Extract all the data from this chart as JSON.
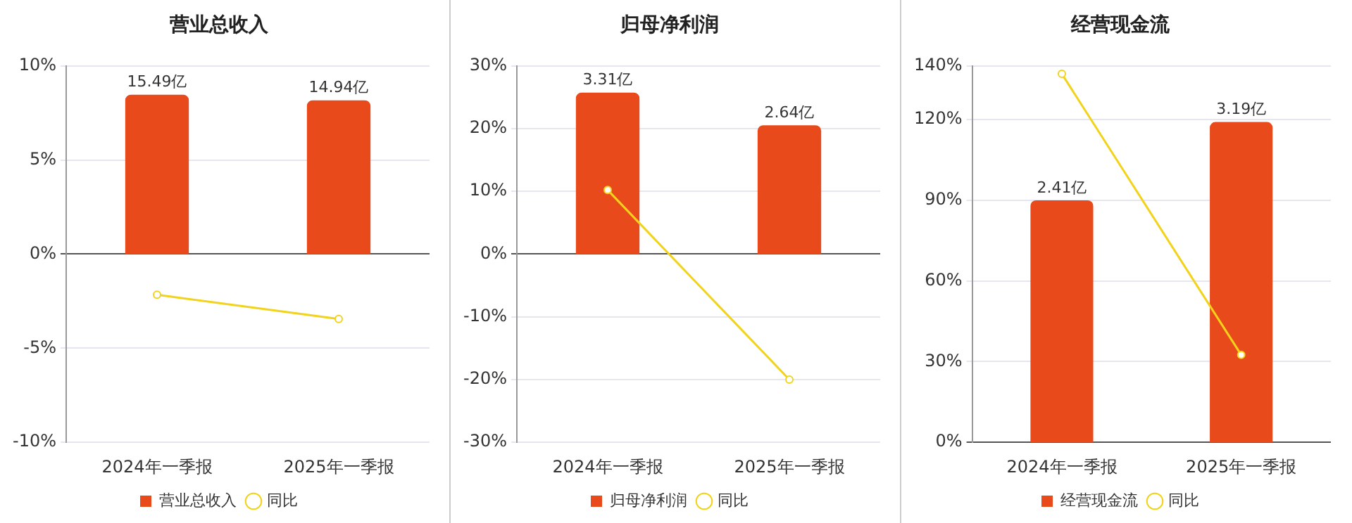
{
  "chart_data": [
    {
      "type": "bar",
      "title": "营业总收入",
      "categories": [
        "2024年一季报",
        "2025年一季报"
      ],
      "series": [
        {
          "name": "营业总收入",
          "axis": "y2",
          "color": "#e84a1c",
          "values": [
            15.49,
            14.94
          ],
          "value_labels": [
            "15.49亿",
            "14.94亿"
          ]
        },
        {
          "name": "同比",
          "type": "line",
          "color": "#f2d31b",
          "values": [
            -2.16,
            -3.45
          ]
        }
      ],
      "ylim": [
        -10,
        10
      ],
      "yticks": [
        {
          "value": -10,
          "label": "-10%"
        },
        {
          "value": -5,
          "label": "-5%"
        },
        {
          "value": 0,
          "label": "0%"
        },
        {
          "value": 5,
          "label": "5%"
        },
        {
          "value": 10,
          "label": "10%"
        }
      ],
      "y2lim": [
        -18.3,
        18.3
      ],
      "grid": "y",
      "legend": "bottom",
      "marker": "circle"
    },
    {
      "type": "bar",
      "title": "归母净利润",
      "categories": [
        "2024年一季报",
        "2025年一季报"
      ],
      "series": [
        {
          "name": "归母净利润",
          "axis": "y2",
          "color": "#e84a1c",
          "values": [
            3.31,
            2.64
          ],
          "value_labels": [
            "3.31亿",
            "2.64亿"
          ]
        },
        {
          "name": "同比",
          "type": "line",
          "color": "#f2d31b",
          "values": [
            10.2,
            -20
          ]
        }
      ],
      "ylim": [
        -30,
        30
      ],
      "yticks": [
        {
          "value": -30,
          "label": "-30%"
        },
        {
          "value": -20,
          "label": "-20%"
        },
        {
          "value": -10,
          "label": "-10%"
        },
        {
          "value": 0,
          "label": "0%"
        },
        {
          "value": 10,
          "label": "10%"
        },
        {
          "value": 20,
          "label": "20%"
        },
        {
          "value": 30,
          "label": "30%"
        }
      ],
      "y2lim": [
        -3.86,
        3.86
      ],
      "grid": "y",
      "legend": "bottom",
      "marker": "circle"
    },
    {
      "type": "bar",
      "title": "经营现金流",
      "categories": [
        "2024年一季报",
        "2025年一季报"
      ],
      "series": [
        {
          "name": "经营现金流",
          "axis": "y2",
          "color": "#e84a1c",
          "values": [
            2.41,
            3.19
          ],
          "value_labels": [
            "2.41亿",
            "3.19亿"
          ]
        },
        {
          "name": "同比",
          "type": "line",
          "color": "#f2d31b",
          "values": [
            137,
            32.5
          ]
        }
      ],
      "ylim": [
        0,
        140
      ],
      "yticks": [
        {
          "value": 0,
          "label": "0%"
        },
        {
          "value": 30,
          "label": "30%"
        },
        {
          "value": 60,
          "label": "60%"
        },
        {
          "value": 90,
          "label": "90%"
        },
        {
          "value": 120,
          "label": "120%"
        },
        {
          "value": 140,
          "label": "140%"
        }
      ],
      "y2lim": [
        0,
        3.75
      ],
      "grid": "y",
      "legend": "bottom",
      "marker": "circle"
    }
  ]
}
